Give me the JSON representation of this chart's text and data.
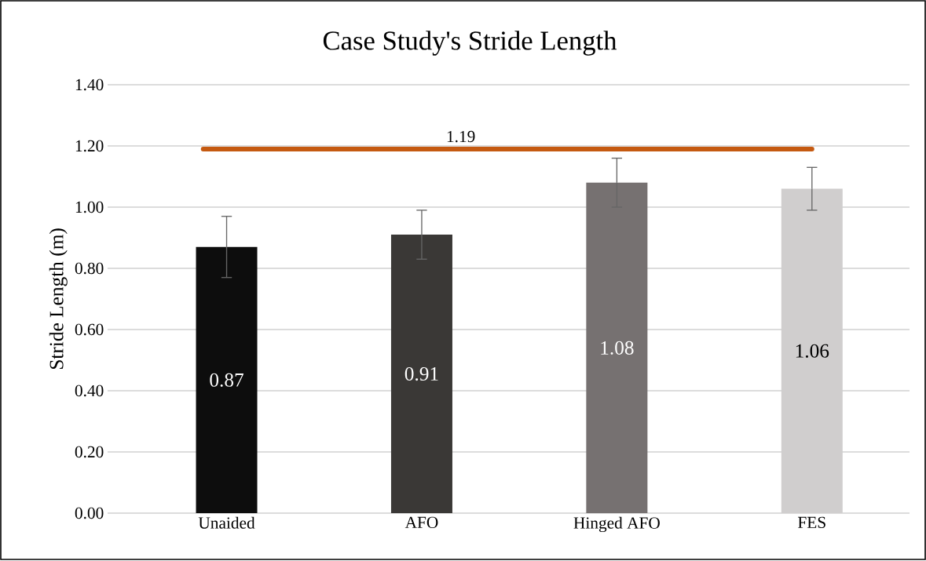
{
  "chart_data": {
    "type": "bar",
    "title": "Case Study's Stride Length",
    "ylabel": "Stride Length (m)",
    "categories": [
      "Unaided",
      "AFO",
      "Hinged AFO",
      "FES"
    ],
    "values": [
      0.87,
      0.91,
      1.08,
      1.06
    ],
    "colors": [
      "#0d0d0d",
      "#3a3836",
      "#767171",
      "#d0cece"
    ],
    "errors": [
      0.1,
      0.08,
      0.08,
      0.07
    ],
    "data_labels": true,
    "ylim": [
      0,
      1.4
    ],
    "yticks": [
      {
        "value": 0,
        "label": "0.00"
      },
      {
        "value": 0.2,
        "label": "0.20"
      },
      {
        "value": 0.4,
        "label": "0.40"
      },
      {
        "value": 0.6,
        "label": "0.60"
      },
      {
        "value": 0.8,
        "label": "0.80"
      },
      {
        "value": 1.0,
        "label": "1.00"
      },
      {
        "value": 1.2,
        "label": "1.20"
      },
      {
        "value": 1.4,
        "label": "1.40"
      }
    ],
    "grid": "y",
    "ref_lines": [
      {
        "axis": "y",
        "value": 1.19,
        "label": "1.19",
        "color": "#c55a11"
      }
    ]
  }
}
